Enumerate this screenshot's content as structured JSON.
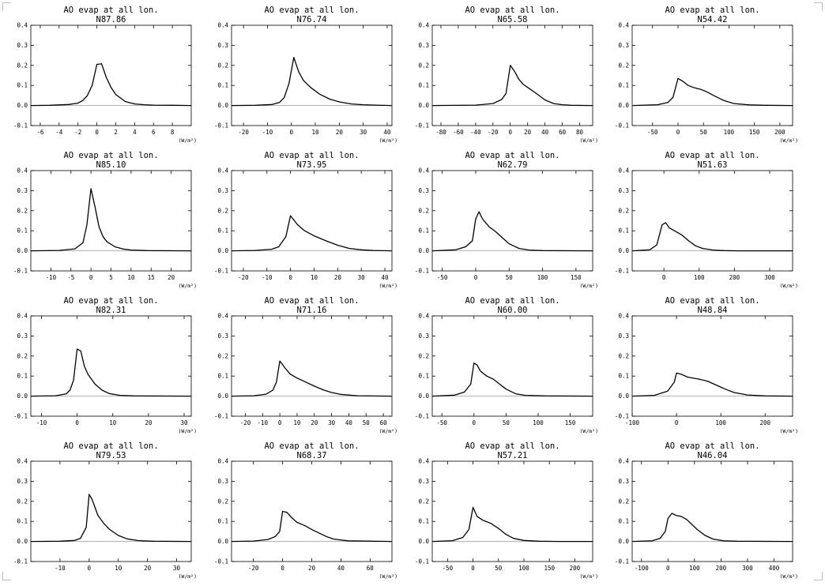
{
  "chart_data": [
    {
      "type": "line",
      "title": "AO evap at all lon.",
      "subtitle": "N87.86",
      "xlabel": "(W/m²)",
      "xlim": [
        -7,
        10
      ],
      "xticks": [
        -6,
        -4,
        -2,
        0,
        2,
        4,
        6,
        8
      ],
      "ylim": [
        -0.1,
        0.4
      ],
      "yticks": [
        -0.1,
        0.0,
        0.1,
        0.2,
        0.3,
        0.4
      ],
      "series": [
        {
          "x": [
            -7,
            -5,
            -3,
            -2,
            -1.5,
            -1,
            -0.5,
            0,
            0.5,
            1,
            1.5,
            2,
            3,
            4,
            5,
            6,
            8,
            10
          ],
          "y": [
            0,
            0.001,
            0.005,
            0.012,
            0.025,
            0.05,
            0.1,
            0.205,
            0.208,
            0.14,
            0.09,
            0.055,
            0.02,
            0.008,
            0.004,
            0.002,
            0.001,
            0
          ]
        }
      ]
    },
    {
      "type": "line",
      "title": "AO evap at all lon.",
      "subtitle": "N76.74",
      "xlabel": "(W/m²)",
      "xlim": [
        -25,
        42
      ],
      "xticks": [
        -20,
        -10,
        0,
        10,
        20,
        30,
        40
      ],
      "ylim": [
        -0.1,
        0.4
      ],
      "yticks": [
        -0.1,
        0.0,
        0.1,
        0.2,
        0.3,
        0.4
      ],
      "series": [
        {
          "x": [
            -25,
            -15,
            -8,
            -5,
            -3,
            -1,
            1,
            3,
            5,
            8,
            12,
            16,
            20,
            25,
            30,
            35,
            42
          ],
          "y": [
            0,
            0.001,
            0.005,
            0.015,
            0.04,
            0.11,
            0.24,
            0.17,
            0.125,
            0.09,
            0.055,
            0.032,
            0.018,
            0.008,
            0.004,
            0.002,
            0
          ]
        }
      ]
    },
    {
      "type": "line",
      "title": "AO evap at all lon.",
      "subtitle": "N65.58",
      "xlabel": "(W/m²)",
      "xlim": [
        -90,
        95
      ],
      "xticks": [
        -80,
        -60,
        -40,
        -20,
        0,
        20,
        40,
        60,
        80
      ],
      "ylim": [
        -0.1,
        0.4
      ],
      "yticks": [
        -0.1,
        0.0,
        0.1,
        0.2,
        0.3,
        0.4
      ],
      "series": [
        {
          "x": [
            -90,
            -40,
            -20,
            -10,
            -5,
            0,
            5,
            10,
            15,
            20,
            30,
            40,
            50,
            60,
            70,
            95
          ],
          "y": [
            0,
            0.002,
            0.01,
            0.03,
            0.06,
            0.2,
            0.17,
            0.13,
            0.105,
            0.09,
            0.06,
            0.028,
            0.01,
            0.004,
            0.001,
            0
          ]
        }
      ]
    },
    {
      "type": "line",
      "title": "AO evap at all lon.",
      "subtitle": "N54.42",
      "xlabel": "(W/m²)",
      "xlim": [
        -90,
        225
      ],
      "xticks": [
        -50,
        0,
        50,
        100,
        150,
        200
      ],
      "ylim": [
        -0.1,
        0.4
      ],
      "yticks": [
        -0.1,
        0.0,
        0.1,
        0.2,
        0.3,
        0.4
      ],
      "series": [
        {
          "x": [
            -90,
            -40,
            -20,
            -10,
            0,
            10,
            20,
            30,
            45,
            55,
            70,
            90,
            110,
            140,
            170,
            225
          ],
          "y": [
            0,
            0.004,
            0.015,
            0.04,
            0.135,
            0.12,
            0.1,
            0.09,
            0.08,
            0.07,
            0.05,
            0.025,
            0.01,
            0.003,
            0.001,
            0
          ]
        }
      ]
    },
    {
      "type": "line",
      "title": "AO evap at all lon.",
      "subtitle": "N85.10",
      "xlabel": "(W/m²)",
      "xlim": [
        -15,
        25
      ],
      "xticks": [
        -10,
        -5,
        0,
        5,
        10,
        15,
        20
      ],
      "ylim": [
        -0.1,
        0.4
      ],
      "yticks": [
        -0.1,
        0.0,
        0.1,
        0.2,
        0.3,
        0.4
      ],
      "series": [
        {
          "x": [
            -15,
            -8,
            -4,
            -2,
            -1,
            0,
            1,
            2,
            3,
            4,
            6,
            8,
            10,
            14,
            25
          ],
          "y": [
            0,
            0.002,
            0.01,
            0.04,
            0.13,
            0.31,
            0.22,
            0.12,
            0.07,
            0.045,
            0.02,
            0.009,
            0.004,
            0.001,
            0
          ]
        }
      ]
    },
    {
      "type": "line",
      "title": "AO evap at all lon.",
      "subtitle": "N73.95",
      "xlabel": "(W/m²)",
      "xlim": [
        -25,
        43
      ],
      "xticks": [
        -20,
        -10,
        0,
        10,
        20,
        30,
        40
      ],
      "ylim": [
        -0.1,
        0.4
      ],
      "yticks": [
        -0.1,
        0.0,
        0.1,
        0.2,
        0.3,
        0.4
      ],
      "series": [
        {
          "x": [
            -25,
            -15,
            -8,
            -5,
            -2,
            0,
            3,
            6,
            10,
            15,
            20,
            25,
            30,
            35,
            43
          ],
          "y": [
            0,
            0.002,
            0.008,
            0.02,
            0.07,
            0.175,
            0.13,
            0.1,
            0.075,
            0.05,
            0.028,
            0.012,
            0.005,
            0.002,
            0
          ]
        }
      ]
    },
    {
      "type": "line",
      "title": "AO evap at all lon.",
      "subtitle": "N62.79",
      "xlabel": "(W/m²)",
      "xlim": [
        -65,
        175
      ],
      "xticks": [
        -50,
        0,
        50,
        100,
        150
      ],
      "ylim": [
        -0.1,
        0.4
      ],
      "yticks": [
        -0.1,
        0.0,
        0.1,
        0.2,
        0.3,
        0.4
      ],
      "series": [
        {
          "x": [
            -65,
            -30,
            -15,
            -5,
            0,
            5,
            10,
            20,
            30,
            40,
            50,
            65,
            80,
            100,
            175
          ],
          "y": [
            0,
            0.005,
            0.02,
            0.05,
            0.16,
            0.195,
            0.16,
            0.12,
            0.095,
            0.065,
            0.035,
            0.012,
            0.004,
            0.001,
            0
          ]
        }
      ]
    },
    {
      "type": "line",
      "title": "AO evap at all lon.",
      "subtitle": "N51.63",
      "xlabel": "(W/m²)",
      "xlim": [
        -90,
        365
      ],
      "xticks": [
        0,
        100,
        200,
        300
      ],
      "ylim": [
        -0.1,
        0.4
      ],
      "yticks": [
        -0.1,
        0.0,
        0.1,
        0.2,
        0.3,
        0.4
      ],
      "series": [
        {
          "x": [
            -90,
            -40,
            -20,
            -5,
            5,
            15,
            30,
            50,
            70,
            90,
            110,
            140,
            170,
            210,
            365
          ],
          "y": [
            0,
            0.005,
            0.03,
            0.13,
            0.14,
            0.115,
            0.1,
            0.08,
            0.05,
            0.025,
            0.012,
            0.004,
            0.001,
            0,
            0
          ]
        }
      ]
    },
    {
      "type": "line",
      "title": "AO evap at all lon.",
      "subtitle": "N82.31",
      "xlabel": "(W/m²)",
      "xlim": [
        -13,
        32
      ],
      "xticks": [
        -10,
        0,
        10,
        20,
        30
      ],
      "ylim": [
        -0.1,
        0.4
      ],
      "yticks": [
        -0.1,
        0.0,
        0.1,
        0.2,
        0.3,
        0.4
      ],
      "series": [
        {
          "x": [
            -13,
            -6,
            -3,
            -2,
            -1,
            0,
            1,
            2,
            3,
            5,
            7,
            9,
            12,
            16,
            32
          ],
          "y": [
            0,
            0.002,
            0.012,
            0.03,
            0.08,
            0.235,
            0.225,
            0.15,
            0.11,
            0.06,
            0.03,
            0.013,
            0.004,
            0.001,
            0
          ]
        }
      ]
    },
    {
      "type": "line",
      "title": "AO evap at all lon.",
      "subtitle": "N71.16",
      "xlabel": "(W/m²)",
      "xlim": [
        -28,
        65
      ],
      "xticks": [
        -20,
        -10,
        0,
        10,
        20,
        30,
        40,
        50,
        60
      ],
      "ylim": [
        -0.1,
        0.4
      ],
      "yticks": [
        -0.1,
        0.0,
        0.1,
        0.2,
        0.3,
        0.4
      ],
      "series": [
        {
          "x": [
            -28,
            -15,
            -8,
            -4,
            -2,
            0,
            3,
            6,
            10,
            15,
            20,
            25,
            30,
            35,
            45,
            65
          ],
          "y": [
            0,
            0.002,
            0.01,
            0.03,
            0.07,
            0.175,
            0.14,
            0.11,
            0.09,
            0.07,
            0.05,
            0.032,
            0.018,
            0.009,
            0.002,
            0
          ]
        }
      ]
    },
    {
      "type": "line",
      "title": "AO evap at all lon.",
      "subtitle": "N60.00",
      "xlabel": "(W/m²)",
      "xlim": [
        -65,
        185
      ],
      "xticks": [
        -50,
        0,
        50,
        100,
        150
      ],
      "ylim": [
        -0.1,
        0.4
      ],
      "yticks": [
        -0.1,
        0.0,
        0.1,
        0.2,
        0.3,
        0.4
      ],
      "series": [
        {
          "x": [
            -65,
            -30,
            -15,
            -5,
            0,
            5,
            10,
            20,
            30,
            40,
            50,
            65,
            80,
            110,
            185
          ],
          "y": [
            0,
            0.005,
            0.02,
            0.06,
            0.165,
            0.155,
            0.125,
            0.1,
            0.085,
            0.06,
            0.035,
            0.012,
            0.004,
            0.001,
            0
          ]
        }
      ]
    },
    {
      "type": "line",
      "title": "AO evap at all lon.",
      "subtitle": "N48.84",
      "xlabel": "(W/m²)",
      "xlim": [
        -100,
        262
      ],
      "xticks": [
        -100,
        0,
        100,
        200
      ],
      "ylim": [
        -0.1,
        0.4
      ],
      "yticks": [
        -0.1,
        0.0,
        0.1,
        0.2,
        0.3,
        0.4
      ],
      "series": [
        {
          "x": [
            -100,
            -50,
            -20,
            -5,
            0,
            10,
            25,
            50,
            70,
            90,
            110,
            130,
            160,
            200,
            262
          ],
          "y": [
            0,
            0.004,
            0.025,
            0.07,
            0.115,
            0.11,
            0.095,
            0.085,
            0.075,
            0.055,
            0.035,
            0.018,
            0.006,
            0.001,
            0
          ]
        }
      ]
    },
    {
      "type": "line",
      "title": "AO evap at all lon.",
      "subtitle": "N79.53",
      "xlabel": "(W/m²)",
      "xlim": [
        -20,
        35
      ],
      "xticks": [
        -10,
        0,
        10,
        20,
        30
      ],
      "ylim": [
        -0.1,
        0.4
      ],
      "yticks": [
        -0.1,
        0.0,
        0.1,
        0.2,
        0.3,
        0.4
      ],
      "series": [
        {
          "x": [
            -20,
            -10,
            -5,
            -3,
            -1,
            0,
            1,
            2,
            3,
            5,
            7,
            10,
            13,
            17,
            22,
            35
          ],
          "y": [
            0,
            0.001,
            0.005,
            0.015,
            0.07,
            0.235,
            0.21,
            0.17,
            0.13,
            0.09,
            0.06,
            0.03,
            0.013,
            0.004,
            0.001,
            0
          ]
        }
      ]
    },
    {
      "type": "line",
      "title": "AO evap at all lon.",
      "subtitle": "N68.37",
      "xlabel": "(W/m²)",
      "xlim": [
        -35,
        75
      ],
      "xticks": [
        -20,
        0,
        20,
        40,
        60
      ],
      "ylim": [
        -0.1,
        0.4
      ],
      "yticks": [
        -0.1,
        0.0,
        0.1,
        0.2,
        0.3,
        0.4
      ],
      "series": [
        {
          "x": [
            -35,
            -20,
            -10,
            -5,
            -2,
            0,
            3,
            6,
            10,
            15,
            20,
            25,
            30,
            35,
            45,
            75
          ],
          "y": [
            0,
            0.002,
            0.01,
            0.025,
            0.05,
            0.15,
            0.145,
            0.12,
            0.095,
            0.08,
            0.06,
            0.042,
            0.025,
            0.012,
            0.003,
            0
          ]
        }
      ]
    },
    {
      "type": "line",
      "title": "AO evap at all lon.",
      "subtitle": "N57.21",
      "xlabel": "(W/m²)",
      "xlim": [
        -80,
        235
      ],
      "xticks": [
        -50,
        0,
        50,
        100,
        150,
        200
      ],
      "ylim": [
        -0.1,
        0.4
      ],
      "yticks": [
        -0.1,
        0.0,
        0.1,
        0.2,
        0.3,
        0.4
      ],
      "series": [
        {
          "x": [
            -80,
            -40,
            -20,
            -8,
            0,
            8,
            20,
            35,
            50,
            65,
            80,
            100,
            130,
            170,
            235
          ],
          "y": [
            0,
            0.004,
            0.02,
            0.06,
            0.17,
            0.125,
            0.105,
            0.09,
            0.065,
            0.035,
            0.015,
            0.005,
            0.001,
            0,
            0
          ]
        }
      ]
    },
    {
      "type": "line",
      "title": "AO evap at all lon.",
      "subtitle": "N46.04",
      "xlabel": "(W/m²)",
      "xlim": [
        -135,
        470
      ],
      "xticks": [
        -100,
        0,
        100,
        200,
        300,
        400
      ],
      "ylim": [
        -0.1,
        0.4
      ],
      "yticks": [
        -0.1,
        0.0,
        0.1,
        0.2,
        0.3,
        0.4
      ],
      "series": [
        {
          "x": [
            -135,
            -60,
            -30,
            -10,
            0,
            15,
            30,
            50,
            70,
            90,
            110,
            140,
            170,
            210,
            260,
            470
          ],
          "y": [
            0,
            0.003,
            0.015,
            0.05,
            0.115,
            0.14,
            0.13,
            0.125,
            0.11,
            0.085,
            0.06,
            0.03,
            0.012,
            0.003,
            0.001,
            0
          ]
        }
      ]
    }
  ]
}
